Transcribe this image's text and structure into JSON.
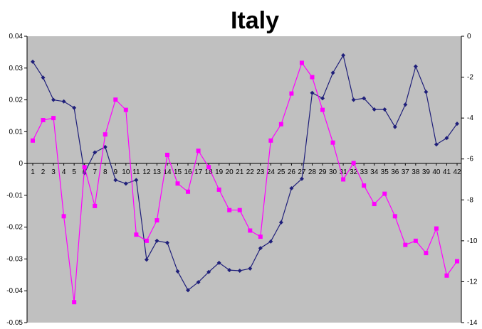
{
  "chart_data": {
    "type": "line",
    "title": "Italy",
    "xlabel": "",
    "ylabel": "",
    "grid": false,
    "legend": "none",
    "plot_background": "#c0c0c0",
    "categories": [
      "1",
      "2",
      "3",
      "4",
      "5",
      "6",
      "7",
      "8",
      "9",
      "10",
      "11",
      "12",
      "13",
      "14",
      "15",
      "16",
      "17",
      "18",
      "19",
      "20",
      "21",
      "22",
      "23",
      "24",
      "25",
      "26",
      "27",
      "28",
      "29",
      "30",
      "31",
      "32",
      "33",
      "34",
      "35",
      "36",
      "37",
      "38",
      "39",
      "40",
      "41",
      "42"
    ],
    "y_left": {
      "min": -0.05,
      "max": 0.04,
      "ticks": [
        "0.04",
        "0.03",
        "0.02",
        "0.01",
        "0",
        "-0.01",
        "-0.02",
        "-0.03",
        "-0.04",
        "-0.05"
      ]
    },
    "y_right": {
      "min": -14,
      "max": 0,
      "ticks": [
        "0",
        "-2",
        "-4",
        "-6",
        "-8",
        "-10",
        "-12",
        "-14"
      ]
    },
    "series": [
      {
        "axis": "left",
        "color": "#1f1f7a",
        "marker": "diamond",
        "values": [
          0.032,
          0.027,
          0.02,
          0.0195,
          0.0175,
          -0.003,
          0.0035,
          0.0052,
          -0.0052,
          -0.0063,
          -0.0052,
          -0.0302,
          -0.0243,
          -0.0249,
          -0.0339,
          -0.0398,
          -0.0373,
          -0.0341,
          -0.0312,
          -0.0335,
          -0.0337,
          -0.033,
          -0.0266,
          -0.0245,
          -0.0185,
          -0.0078,
          -0.0048,
          0.0222,
          0.0205,
          0.0285,
          0.034,
          0.02,
          0.0205,
          0.017,
          0.017,
          0.0115,
          0.0185,
          0.0305,
          0.0225,
          0.006,
          0.008,
          0.0125
        ]
      },
      {
        "axis": "right",
        "color": "#ff00ff",
        "marker": "square",
        "values": [
          -5.1,
          -4.1,
          -4.0,
          -8.8,
          -13.0,
          -6.4,
          -8.3,
          -4.8,
          -3.1,
          -3.6,
          -9.7,
          -10.0,
          -9.0,
          -5.8,
          -7.2,
          -7.6,
          -5.6,
          -6.4,
          -7.5,
          -8.5,
          -8.5,
          -9.5,
          -9.8,
          -5.1,
          -4.3,
          -2.8,
          -1.3,
          -2.0,
          -3.6,
          -5.2,
          -7.0,
          -6.2,
          -7.3,
          -8.2,
          -7.7,
          -8.8,
          -10.2,
          -10.0,
          -10.6,
          -9.4,
          -11.7,
          -11.0
        ]
      }
    ]
  }
}
